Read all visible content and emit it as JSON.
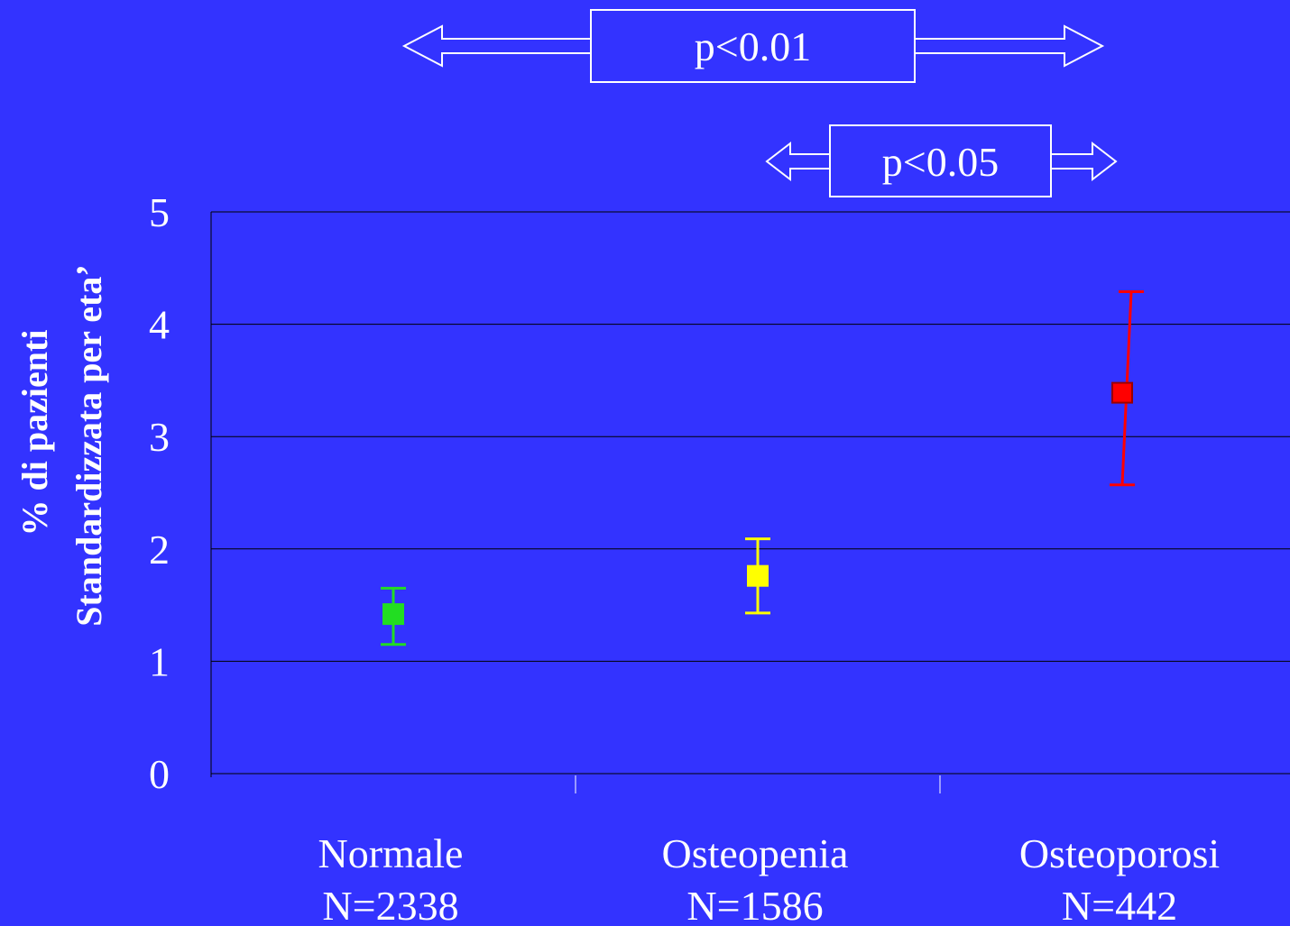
{
  "chart_data": {
    "type": "scatter",
    "ylabel": [
      "% di pazienti",
      "Standardizzata per eta’"
    ],
    "ylim": [
      0,
      5
    ],
    "yticks": [
      "0",
      "1",
      "2",
      "3",
      "4",
      "5"
    ],
    "grid": true,
    "categories": [
      {
        "name": "Normale",
        "n_label": "N=2338",
        "value": 1.42,
        "err_low": 1.15,
        "err_high": 1.65,
        "color": "#22dd22"
      },
      {
        "name": "Osteopenia",
        "n_label": "N=1586",
        "value": 1.76,
        "err_low": 1.43,
        "err_high": 2.09,
        "color": "#ffff00"
      },
      {
        "name": "Osteoporosi",
        "n_label": "N=442",
        "value": 3.39,
        "err_low": 2.57,
        "err_high": 4.29,
        "color": "#ff0000"
      }
    ],
    "annotations": [
      {
        "text": "p<0.01",
        "from": "Normale",
        "to": "Osteoporosi"
      },
      {
        "text": "p<0.05",
        "from": "Osteopenia",
        "to": "Osteoporosi"
      }
    ]
  }
}
